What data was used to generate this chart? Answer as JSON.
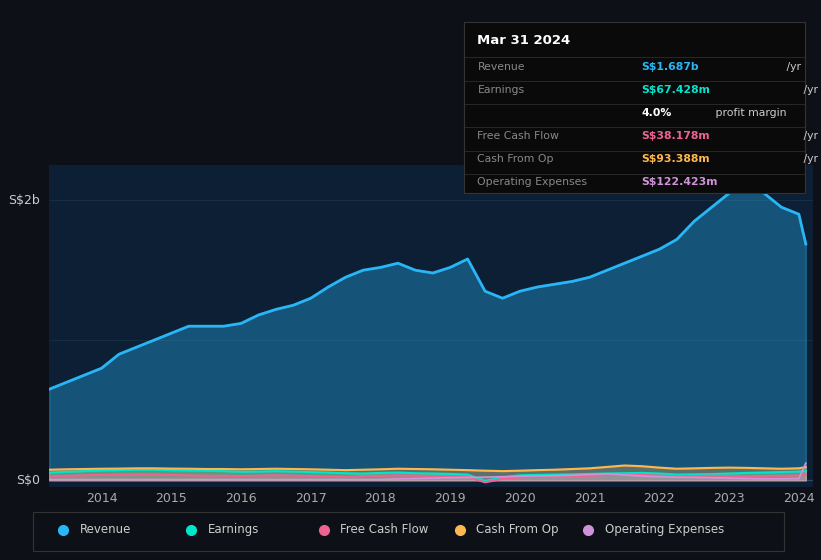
{
  "background_color": "#0d1117",
  "plot_bg_color": "#0d1f35",
  "years": [
    2013.25,
    2013.5,
    2013.75,
    2014.0,
    2014.25,
    2014.5,
    2014.75,
    2015.0,
    2015.25,
    2015.5,
    2015.75,
    2016.0,
    2016.25,
    2016.5,
    2016.75,
    2017.0,
    2017.25,
    2017.5,
    2017.75,
    2018.0,
    2018.25,
    2018.5,
    2018.75,
    2019.0,
    2019.25,
    2019.5,
    2019.75,
    2020.0,
    2020.25,
    2020.5,
    2020.75,
    2021.0,
    2021.25,
    2021.5,
    2021.75,
    2022.0,
    2022.25,
    2022.5,
    2022.75,
    2023.0,
    2023.25,
    2023.5,
    2023.75,
    2024.0,
    2024.1
  ],
  "revenue": [
    0.65,
    0.7,
    0.75,
    0.8,
    0.9,
    0.95,
    1.0,
    1.05,
    1.1,
    1.1,
    1.1,
    1.12,
    1.18,
    1.22,
    1.25,
    1.3,
    1.38,
    1.45,
    1.5,
    1.52,
    1.55,
    1.5,
    1.48,
    1.52,
    1.58,
    1.35,
    1.3,
    1.35,
    1.38,
    1.4,
    1.42,
    1.45,
    1.5,
    1.55,
    1.6,
    1.65,
    1.72,
    1.85,
    1.95,
    2.05,
    2.1,
    2.05,
    1.95,
    1.9,
    1.687
  ],
  "earnings": [
    0.055,
    0.06,
    0.065,
    0.07,
    0.072,
    0.075,
    0.075,
    0.072,
    0.07,
    0.068,
    0.065,
    0.06,
    0.062,
    0.065,
    0.062,
    0.058,
    0.055,
    0.05,
    0.048,
    0.052,
    0.055,
    0.05,
    0.048,
    0.045,
    0.04,
    -0.005,
    0.02,
    0.035,
    0.038,
    0.04,
    0.042,
    0.045,
    0.048,
    0.05,
    0.052,
    0.048,
    0.04,
    0.042,
    0.044,
    0.048,
    0.052,
    0.055,
    0.058,
    0.062,
    0.06743
  ],
  "free_cash_flow": [
    0.03,
    0.032,
    0.035,
    0.038,
    0.04,
    0.042,
    0.04,
    0.038,
    0.035,
    0.033,
    0.032,
    0.03,
    0.033,
    0.035,
    0.033,
    0.03,
    0.028,
    0.025,
    0.03,
    0.032,
    0.035,
    0.033,
    0.03,
    0.028,
    0.025,
    -0.015,
    0.01,
    0.02,
    0.025,
    0.028,
    0.03,
    0.032,
    0.038,
    0.04,
    0.038,
    0.032,
    0.028,
    0.03,
    0.032,
    0.03,
    0.028,
    0.03,
    0.032,
    0.035,
    0.03818
  ],
  "cash_from_op": [
    0.075,
    0.078,
    0.08,
    0.082,
    0.083,
    0.085,
    0.085,
    0.083,
    0.082,
    0.08,
    0.08,
    0.078,
    0.08,
    0.082,
    0.08,
    0.078,
    0.075,
    0.072,
    0.075,
    0.078,
    0.082,
    0.08,
    0.078,
    0.075,
    0.072,
    0.068,
    0.065,
    0.068,
    0.072,
    0.075,
    0.08,
    0.085,
    0.095,
    0.105,
    0.1,
    0.09,
    0.082,
    0.085,
    0.088,
    0.09,
    0.088,
    0.085,
    0.082,
    0.085,
    0.09339
  ],
  "operating_expenses": [
    0.005,
    0.005,
    0.005,
    0.005,
    0.005,
    0.005,
    0.005,
    0.005,
    0.005,
    0.005,
    0.005,
    0.005,
    0.005,
    0.005,
    0.005,
    0.005,
    0.005,
    0.005,
    0.005,
    0.005,
    0.01,
    0.012,
    0.015,
    0.018,
    0.02,
    0.022,
    0.025,
    0.028,
    0.03,
    0.032,
    0.035,
    0.04,
    0.045,
    0.038,
    0.03,
    0.025,
    0.022,
    0.02,
    0.018,
    0.015,
    0.012,
    0.01,
    0.01,
    0.012,
    0.12242
  ],
  "revenue_color": "#29b6f6",
  "earnings_color": "#00e5cc",
  "free_cash_flow_color": "#f06292",
  "cash_from_op_color": "#ffb74d",
  "operating_expenses_color": "#ce93d8",
  "xlim": [
    2013.25,
    2024.2
  ],
  "ylim": [
    -0.05,
    2.25
  ],
  "xticks": [
    2014,
    2015,
    2016,
    2017,
    2018,
    2019,
    2020,
    2021,
    2022,
    2023,
    2024
  ],
  "info_box": {
    "date": "Mar 31 2024",
    "rows": [
      {
        "label": "Revenue",
        "value": "S$1.687b",
        "value_color": "#29b6f6",
        "suffix": " /yr"
      },
      {
        "label": "Earnings",
        "value": "S$67.428m",
        "value_color": "#00e5cc",
        "suffix": " /yr"
      },
      {
        "label": "",
        "value": "4.0%",
        "value_color": "#ffffff",
        "suffix": " profit margin"
      },
      {
        "label": "Free Cash Flow",
        "value": "S$38.178m",
        "value_color": "#f06292",
        "suffix": " /yr"
      },
      {
        "label": "Cash From Op",
        "value": "S$93.388m",
        "value_color": "#ffb74d",
        "suffix": " /yr"
      },
      {
        "label": "Operating Expenses",
        "value": "S$122.423m",
        "value_color": "#ce93d8",
        "suffix": " /yr"
      }
    ]
  },
  "legend": [
    {
      "label": "Revenue",
      "color": "#29b6f6"
    },
    {
      "label": "Earnings",
      "color": "#00e5cc"
    },
    {
      "label": "Free Cash Flow",
      "color": "#f06292"
    },
    {
      "label": "Cash From Op",
      "color": "#ffb74d"
    },
    {
      "label": "Operating Expenses",
      "color": "#ce93d8"
    }
  ]
}
